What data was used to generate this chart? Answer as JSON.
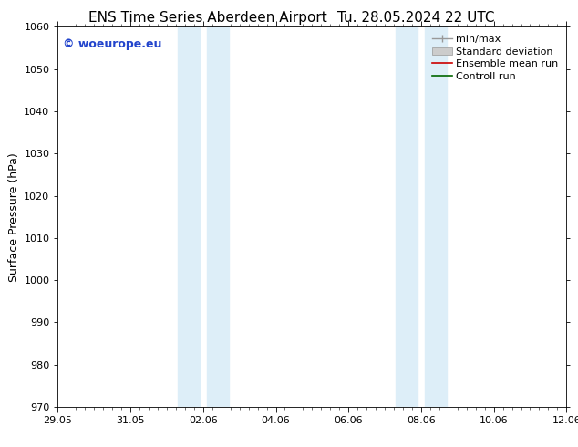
{
  "title": "ENS Time Series Aberdeen Airport",
  "title_date": "Tu. 28.05.2024 22 UTC",
  "ylabel": "Surface Pressure (hPa)",
  "ylim": [
    970,
    1060
  ],
  "yticks": [
    970,
    980,
    990,
    1000,
    1010,
    1020,
    1030,
    1040,
    1050,
    1060
  ],
  "x_labels": [
    "29.05",
    "31.05",
    "02.06",
    "04.06",
    "06.06",
    "08.06",
    "10.06",
    "12.06"
  ],
  "x_positions": [
    0,
    2,
    4,
    6,
    8,
    10,
    12,
    14
  ],
  "xlim": [
    0,
    14
  ],
  "shaded_bands": [
    {
      "x_start": 3.3,
      "x_end": 3.9
    },
    {
      "x_start": 4.1,
      "x_end": 4.7
    },
    {
      "x_start": 9.3,
      "x_end": 9.9
    },
    {
      "x_start": 10.1,
      "x_end": 10.7
    }
  ],
  "band_color": "#ddeef8",
  "watermark_text": "© woeurope.eu",
  "watermark_color": "#2244cc",
  "bg_color": "#ffffff",
  "title_fontsize": 11,
  "label_fontsize": 9,
  "tick_fontsize": 8,
  "legend_fontsize": 8
}
